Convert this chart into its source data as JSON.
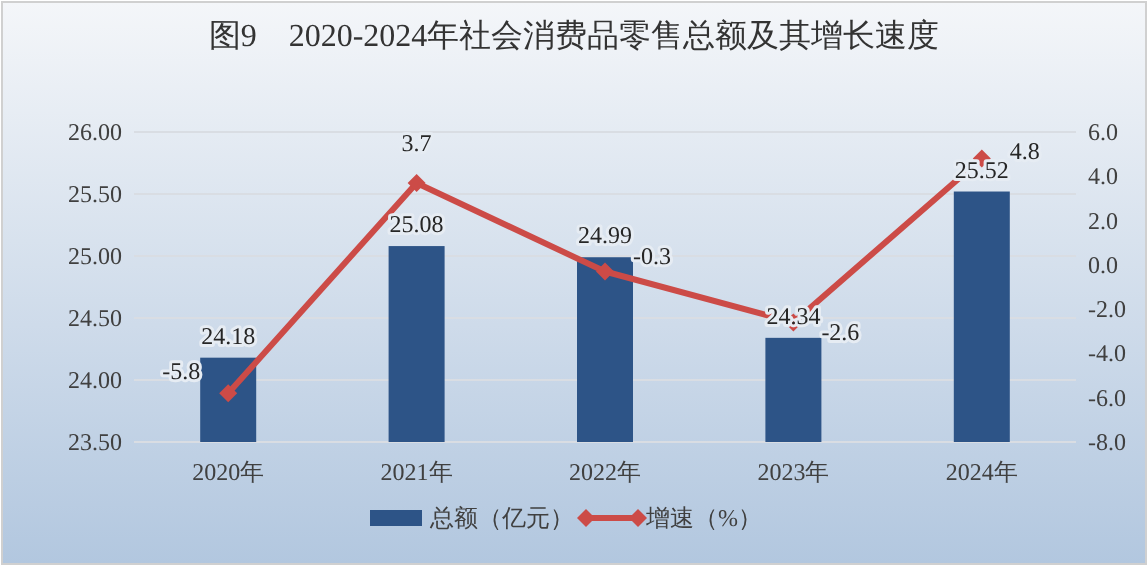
{
  "chart_data": {
    "type": "bar",
    "title": "图9　2020-2024年社会消费品零售总额及其增长速度",
    "categories": [
      "2020年",
      "2021年",
      "2022年",
      "2023年",
      "2024年"
    ],
    "series": [
      {
        "name": "总额（亿元）",
        "color": "#2d5487",
        "values": [
          24.18,
          25.08,
          24.99,
          24.34,
          25.52
        ]
      },
      {
        "name": "增速（%）",
        "type": "line",
        "axis": "y2",
        "color": "#cc4b47",
        "values": [
          -5.8,
          3.7,
          -0.3,
          -2.6,
          4.8
        ]
      }
    ],
    "ylim": [
      23.5,
      26.0
    ],
    "yticks": [
      {
        "value": 23.5,
        "label": "23.50"
      },
      {
        "value": 24.0,
        "label": "24.00"
      },
      {
        "value": 24.5,
        "label": "24.50"
      },
      {
        "value": 25.0,
        "label": "25.00"
      },
      {
        "value": 25.5,
        "label": "25.50"
      },
      {
        "value": 26.0,
        "label": "26.00"
      }
    ],
    "y2lim": [
      -8.0,
      6.0
    ],
    "y2ticks": [
      {
        "value": -8.0,
        "label": "-8.0"
      },
      {
        "value": -6.0,
        "label": "-6.0"
      },
      {
        "value": -4.0,
        "label": "-4.0"
      },
      {
        "value": -2.0,
        "label": "-2.0"
      },
      {
        "value": 0.0,
        "label": "0.0"
      },
      {
        "value": 2.0,
        "label": "2.0"
      },
      {
        "value": 4.0,
        "label": "4.0"
      },
      {
        "value": 6.0,
        "label": "6.0"
      }
    ],
    "grid": "y",
    "legend": "bottom",
    "marker": "diamond",
    "data_labels": true
  }
}
